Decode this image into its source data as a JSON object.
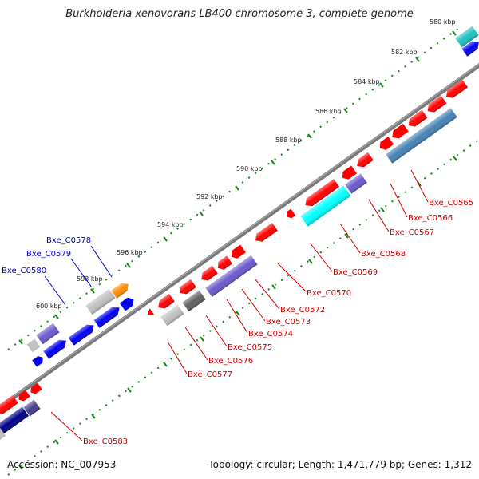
{
  "title": "Burkholderia xenovorans LB400 chromosome 3, complete genome",
  "footer": {
    "accession": "Accession: NC_007953",
    "summary": "Topology: circular; Length: 1,471,779 bp; Genes: 1,312"
  },
  "ticks": [
    "580 kbp",
    "582 kbp",
    "584 kbp",
    "586 kbp",
    "588 kbp",
    "590 kbp",
    "592 kbp",
    "594 kbp",
    "596 kbp",
    "598 kbp",
    "600 kbp"
  ],
  "genes_forward": [
    {
      "id": "Bxe_C0580",
      "color": "#0000cc"
    },
    {
      "id": "Bxe_C0579",
      "color": "#0000cc"
    },
    {
      "id": "Bxe_C0578",
      "color": "#0000cc"
    }
  ],
  "genes_reverse": [
    {
      "id": "Bxe_C0565",
      "color": "#cc0000"
    },
    {
      "id": "Bxe_C0566",
      "color": "#cc0000"
    },
    {
      "id": "Bxe_C0567",
      "color": "#cc0000"
    },
    {
      "id": "Bxe_C0568",
      "color": "#cc0000"
    },
    {
      "id": "Bxe_C0569",
      "color": "#cc0000"
    },
    {
      "id": "Bxe_C0570",
      "color": "#cc0000"
    },
    {
      "id": "Bxe_C0572",
      "color": "#cc0000"
    },
    {
      "id": "Bxe_C0573",
      "color": "#cc0000"
    },
    {
      "id": "Bxe_C0574",
      "color": "#cc0000"
    },
    {
      "id": "Bxe_C0575",
      "color": "#cc0000"
    },
    {
      "id": "Bxe_C0576",
      "color": "#cc0000"
    },
    {
      "id": "Bxe_C0577",
      "color": "#cc0000"
    },
    {
      "id": "Bxe_C0583",
      "color": "#cc0000"
    }
  ],
  "feature_colors": {
    "red": "#ff0000",
    "blue": "#0000ee",
    "navy": "#000088",
    "slate": "#6a5acd",
    "steel": "#4682b4",
    "cyan": "#00ffff",
    "teal": "#20c0c0",
    "orange": "#ff8c00",
    "silver": "#c0c0c0",
    "gray": "#606060",
    "backbone": "#808080"
  }
}
